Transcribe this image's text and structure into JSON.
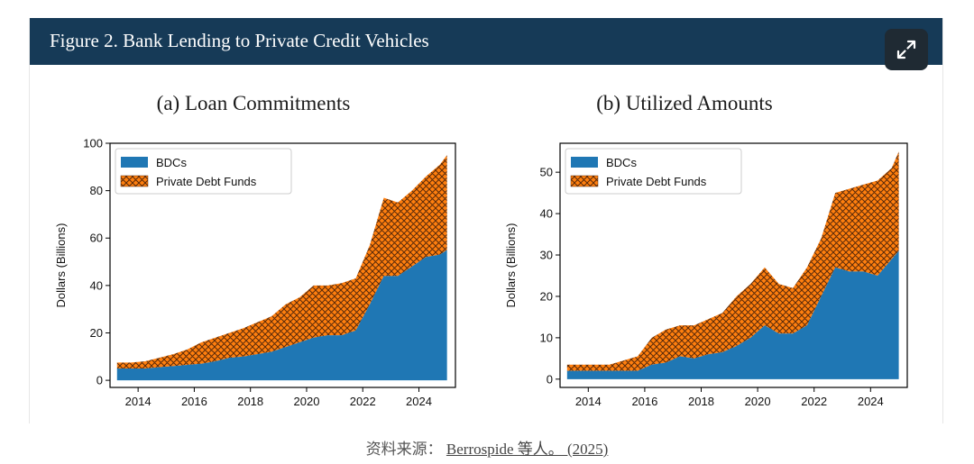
{
  "header": {
    "title": "Figure 2. Bank Lending to Private Credit Vehicles"
  },
  "caption": {
    "prefix": "资料来源：",
    "link_text": "Berrospide 等人。 (2025)"
  },
  "colors": {
    "header_bg": "#163a57",
    "bdc": "#1f77b4",
    "pdf_fill": "#ff7f0e",
    "pdf_hatch": "#5a2a0a",
    "axis": "#000000"
  },
  "icons": {
    "expand": "expand-arrows-icon"
  },
  "chart_data": [
    {
      "type": "area",
      "title": "(a) Loan Commitments",
      "ylabel": "Dollars (Billions)",
      "xlim": [
        2013.0,
        2025.3
      ],
      "ylim": [
        -3,
        100
      ],
      "xticks": [
        2014,
        2016,
        2018,
        2020,
        2022,
        2024
      ],
      "yticks": [
        0,
        20,
        40,
        60,
        80,
        100
      ],
      "legend": {
        "position": "top-left"
      },
      "x": [
        2013.25,
        2013.75,
        2014.25,
        2014.75,
        2015.25,
        2015.75,
        2016.25,
        2016.75,
        2017.25,
        2017.75,
        2018.25,
        2018.75,
        2019.25,
        2019.75,
        2020.25,
        2020.75,
        2021.25,
        2021.75,
        2022.25,
        2022.75,
        2023.25,
        2023.75,
        2024.25,
        2024.75,
        2025.0
      ],
      "series": [
        {
          "name": "BDCs",
          "stack": "base",
          "values": [
            5,
            5,
            5,
            5.5,
            6,
            6.5,
            7,
            8,
            9.5,
            10,
            11,
            12,
            14,
            16,
            18,
            19,
            19,
            21,
            32,
            44,
            44,
            48,
            52,
            53,
            55
          ]
        },
        {
          "name": "Private Debt Funds",
          "stack": "top",
          "values": [
            2.5,
            2.5,
            3,
            4,
            5,
            6.5,
            9,
            10,
            10.5,
            12,
            13.5,
            15,
            18,
            19,
            22,
            21,
            22,
            22,
            25,
            33,
            31,
            32,
            34,
            38,
            40
          ]
        }
      ]
    },
    {
      "type": "area",
      "title": "(b) Utilized Amounts",
      "ylabel": "Dollars (Billions)",
      "xlim": [
        2013.0,
        2025.3
      ],
      "ylim": [
        -2,
        57
      ],
      "xticks": [
        2014,
        2016,
        2018,
        2020,
        2022,
        2024
      ],
      "yticks": [
        0,
        10,
        20,
        30,
        40,
        50
      ],
      "legend": {
        "position": "top-left"
      },
      "x": [
        2013.25,
        2013.75,
        2014.25,
        2014.75,
        2015.25,
        2015.75,
        2016.25,
        2016.75,
        2017.25,
        2017.75,
        2018.25,
        2018.75,
        2019.25,
        2019.75,
        2020.25,
        2020.75,
        2021.25,
        2021.75,
        2022.25,
        2022.75,
        2023.25,
        2023.75,
        2024.25,
        2024.75,
        2025.0
      ],
      "series": [
        {
          "name": "BDCs",
          "stack": "base",
          "values": [
            2,
            2,
            2,
            2,
            2,
            2,
            3.5,
            4,
            5.5,
            5,
            6,
            6.5,
            8,
            10,
            13,
            11,
            11,
            13,
            20,
            27,
            26,
            26,
            25,
            29,
            31
          ]
        },
        {
          "name": "Private Debt Funds",
          "stack": "top",
          "values": [
            1.5,
            1.5,
            1.5,
            1.5,
            2.5,
            3.5,
            6.5,
            8,
            7.5,
            8,
            8.5,
            9.5,
            12,
            13,
            14,
            12,
            11,
            14,
            14,
            18,
            20,
            21,
            23,
            22,
            24
          ]
        }
      ]
    }
  ]
}
